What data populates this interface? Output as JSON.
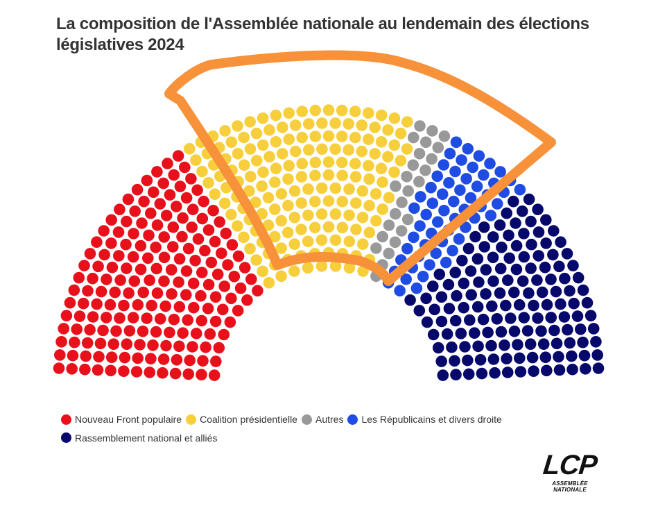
{
  "title": "La composition de l'Assemblée nationale au lendemain des élections législatives 2024",
  "chart_data": {
    "type": "parliament",
    "title": "La composition de l'Assemblée nationale au lendemain des élections législatives 2024",
    "total_seats": 577,
    "series": [
      {
        "name": "Nouveau Front populaire",
        "seats": 182,
        "color": "#e8101a"
      },
      {
        "name": "Coalition présidentielle",
        "seats": 168,
        "color": "#f7cf3c"
      },
      {
        "name": "Autres",
        "seats": 25,
        "color": "#999999"
      },
      {
        "name": "Les Républicains et divers droite",
        "seats": 59,
        "color": "#1f4de3"
      },
      {
        "name": "Rassemblement national et alliés",
        "seats": 143,
        "color": "#06086b"
      }
    ],
    "annotation": {
      "type": "hand-drawn outline",
      "color": "#f7913a",
      "around": [
        "Coalition présidentielle",
        "Autres",
        "Les Républicains et divers droite"
      ]
    }
  },
  "logo": {
    "main": "LCP",
    "sub": "ASSEMBLÉE NATIONALE"
  }
}
